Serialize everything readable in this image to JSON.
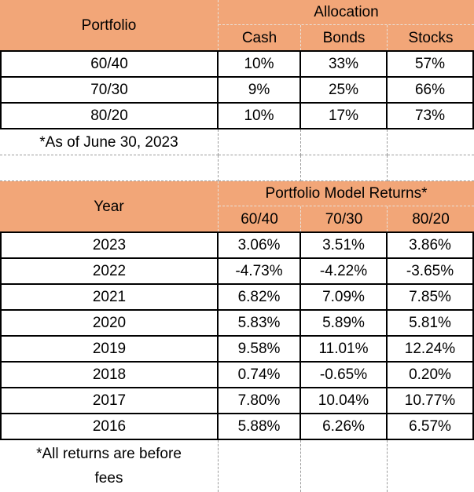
{
  "colors": {
    "header_bg": "#F2A678",
    "grid_black": "#000000",
    "grid_dashed_gray": "#9c9c9c",
    "grid_dashed_on_orange": "#e8e2db"
  },
  "allocation_table": {
    "col1_header": "Portfolio",
    "group_header": "Allocation",
    "columns": [
      "Cash",
      "Bonds",
      "Stocks"
    ],
    "rows": [
      {
        "label": "60/40",
        "values": [
          "10%",
          "33%",
          "57%"
        ]
      },
      {
        "label": "70/30",
        "values": [
          "9%",
          "25%",
          "66%"
        ]
      },
      {
        "label": "80/20",
        "values": [
          "10%",
          "17%",
          "73%"
        ]
      }
    ],
    "footnote": "*As of June 30, 2023"
  },
  "returns_table": {
    "col1_header": "Year",
    "group_header": "Portfolio Model Returns*",
    "columns": [
      "60/40",
      "70/30",
      "80/20"
    ],
    "rows": [
      {
        "label": "2023",
        "values": [
          "3.06%",
          "3.51%",
          "3.86%"
        ]
      },
      {
        "label": "2022",
        "values": [
          "-4.73%",
          "-4.22%",
          "-3.65%"
        ]
      },
      {
        "label": "2021",
        "values": [
          "6.82%",
          "7.09%",
          "7.85%"
        ]
      },
      {
        "label": "2020",
        "values": [
          "5.83%",
          "5.89%",
          "5.81%"
        ]
      },
      {
        "label": "2019",
        "values": [
          "9.58%",
          "11.01%",
          "12.24%"
        ]
      },
      {
        "label": "2018",
        "values": [
          "0.74%",
          "-0.65%",
          "0.20%"
        ]
      },
      {
        "label": "2017",
        "values": [
          "7.80%",
          "10.04%",
          "10.77%"
        ]
      },
      {
        "label": "2016",
        "values": [
          "5.88%",
          "6.26%",
          "6.57%"
        ]
      }
    ],
    "footnote": "*All returns are before\nfees"
  }
}
